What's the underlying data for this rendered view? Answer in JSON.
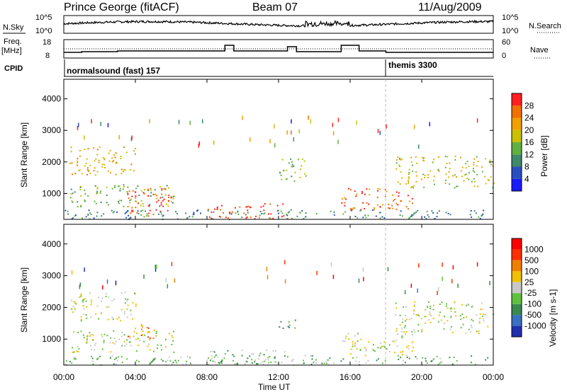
{
  "header": {
    "station": "Prince George (fitACF)",
    "beam": "Beam 07",
    "date": "11/Aug/2009"
  },
  "strips": {
    "nsky_label": "N.Sky",
    "nsky_ticks": [
      "10^5",
      "10^0"
    ],
    "nsearch_label": "N.Search",
    "nsearch_ticks": [
      "10^5",
      "10^0"
    ],
    "freq_label": "Freq.",
    "freq_unit": "[MHz]",
    "freq_ticks": [
      "18",
      "8"
    ],
    "nave_label": "Nave",
    "nave_ticks": [
      "60",
      "0"
    ],
    "cpid_label": "CPID",
    "cpid_segments": [
      {
        "name": "normalsound (fast) 157",
        "start_h": 0,
        "end_h": 18
      },
      {
        "name": "themis 3300",
        "start_h": 18,
        "end_h": 24
      }
    ]
  },
  "chart_data": [
    {
      "type": "heatmap",
      "name": "power",
      "ylabel": "Slant Range [km]",
      "yticks": [
        "1000",
        "2000",
        "3000",
        "4000"
      ],
      "ylim": [
        180,
        4620
      ],
      "colorbar": {
        "label": "Power [dB]",
        "ticks": [
          "4",
          "8",
          "12",
          "16",
          "20",
          "24",
          "28"
        ],
        "colors": [
          "#1a1aff",
          "#2a4fc0",
          "#3f8a6a",
          "#60b040",
          "#c8c000",
          "#f0a000",
          "#f07000",
          "#ff2020"
        ]
      },
      "scatter_regions": [
        {
          "t0": 0.3,
          "t1": 6.2,
          "r0": 600,
          "r1": 1300,
          "level": 3
        },
        {
          "t0": 3.5,
          "t1": 6.0,
          "r0": 300,
          "r1": 1200,
          "level": 7
        },
        {
          "t0": 0.3,
          "t1": 4.0,
          "r0": 1600,
          "r1": 2500,
          "level": 5
        },
        {
          "t0": 8.0,
          "t1": 12.5,
          "r0": 200,
          "r1": 700,
          "level": 7
        },
        {
          "t0": 12.0,
          "t1": 13.5,
          "r0": 1400,
          "r1": 2200,
          "level": 3
        },
        {
          "t0": 15.5,
          "t1": 19.5,
          "r0": 500,
          "r1": 1200,
          "level": 6
        },
        {
          "t0": 18.5,
          "t1": 24.0,
          "r0": 1200,
          "r1": 2200,
          "level": 4
        },
        {
          "t0": 0.0,
          "t1": 24.0,
          "r0": 200,
          "r1": 500,
          "level": 2
        }
      ]
    },
    {
      "type": "heatmap",
      "name": "velocity",
      "xlabel": "Time UT",
      "ylabel": "Slant Range [km]",
      "xticks": [
        "00:00",
        "04:00",
        "08:00",
        "12:00",
        "16:00",
        "20:00",
        "00:00"
      ],
      "yticks": [
        "1000",
        "2000",
        "3000",
        "4000"
      ],
      "ylim": [
        180,
        4620
      ],
      "colorbar": {
        "label": "Velocity [m s-1]",
        "ticks": [
          "1000",
          "500",
          "100",
          "25",
          "-25",
          "-100",
          "-500",
          "-1000"
        ],
        "colors": [
          "#2030b0",
          "#3a70c0",
          "#3a8a50",
          "#60c040",
          "#c8c8c8",
          "#f0c000",
          "#f08000",
          "#ff3000",
          "#ff0000"
        ]
      },
      "scatter_regions": [
        {
          "t0": 0.3,
          "t1": 6.2,
          "r0": 600,
          "r1": 1300,
          "level": 4
        },
        {
          "t0": 3.5,
          "t1": 5.0,
          "r0": 1000,
          "r1": 1500,
          "level": 6
        },
        {
          "t0": 0.3,
          "t1": 4.0,
          "r0": 1600,
          "r1": 2500,
          "level": 4
        },
        {
          "t0": 8.0,
          "t1": 12.5,
          "r0": 200,
          "r1": 700,
          "level": 3
        },
        {
          "t0": 12.0,
          "t1": 13.0,
          "r0": 1300,
          "r1": 1700,
          "level": 2
        },
        {
          "t0": 15.5,
          "t1": 19.5,
          "r0": 500,
          "r1": 1200,
          "level": 4
        },
        {
          "t0": 18.5,
          "t1": 24.0,
          "r0": 1200,
          "r1": 2200,
          "level": 4
        },
        {
          "t0": 0.0,
          "t1": 24.0,
          "r0": 200,
          "r1": 500,
          "level": 3
        }
      ]
    }
  ]
}
